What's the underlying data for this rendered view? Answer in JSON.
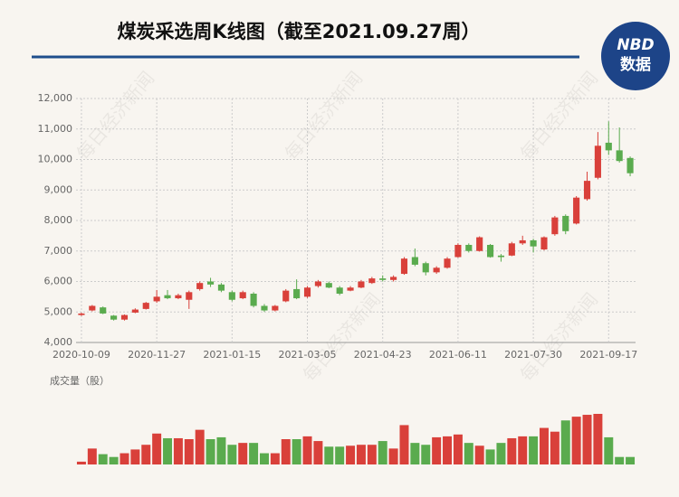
{
  "chart_data": {
    "type": "candlestick",
    "title": "煤炭采选周K线图（截至2021.09.27周）",
    "logo_top": "NBD",
    "logo_bottom": "数据",
    "watermark": "每日经济新闻",
    "volume_label": "成交量（股）",
    "categories": [
      "2020-10-09",
      null,
      null,
      null,
      null,
      null,
      null,
      "2020-11-27",
      null,
      null,
      null,
      null,
      null,
      null,
      "2021-01-15",
      null,
      null,
      null,
      null,
      null,
      null,
      "2021-03-05",
      null,
      null,
      null,
      null,
      null,
      null,
      "2021-04-23",
      null,
      null,
      null,
      null,
      null,
      null,
      "2021-06-11",
      null,
      null,
      null,
      null,
      null,
      null,
      "2021-07-30",
      null,
      null,
      null,
      null,
      null,
      null,
      "2021-09-17",
      null,
      null
    ],
    "open": [
      4900,
      5050,
      5150,
      4880,
      4750,
      4980,
      5100,
      5350,
      5550,
      5450,
      5400,
      5750,
      6000,
      5900,
      5650,
      5450,
      5600,
      5200,
      5050,
      5350,
      5750,
      5500,
      5850,
      5950,
      5800,
      5700,
      5800,
      5950,
      6100,
      6050,
      6250,
      6800,
      6600,
      6300,
      6450,
      6800,
      7200,
      7000,
      7200,
      6850,
      6850,
      7250,
      7350,
      7050,
      7550,
      8150,
      7900,
      8700,
      9400,
      10550,
      10300,
      10050
    ],
    "high": [
      4980,
      5230,
      5180,
      4900,
      4920,
      5120,
      5330,
      5720,
      5720,
      5600,
      5700,
      6000,
      6120,
      5950,
      5700,
      5700,
      5650,
      5260,
      5230,
      5750,
      6070,
      5850,
      6050,
      6000,
      5850,
      5850,
      6050,
      6150,
      6200,
      6200,
      6800,
      7080,
      6650,
      6500,
      6800,
      7250,
      7250,
      7480,
      7230,
      6900,
      7300,
      7500,
      7400,
      7480,
      8150,
      8200,
      8800,
      9600,
      10900,
      11250,
      11050,
      10100
    ],
    "low": [
      4870,
      5020,
      4930,
      4720,
      4720,
      4960,
      5080,
      5300,
      5420,
      5420,
      5100,
      5700,
      5820,
      5650,
      5350,
      5420,
      5150,
      5000,
      5020,
      5320,
      5420,
      5460,
      5800,
      5780,
      5550,
      5680,
      5780,
      5920,
      6000,
      6000,
      6220,
      6500,
      6200,
      6250,
      6420,
      6780,
      6950,
      6980,
      6780,
      6650,
      6830,
      7200,
      6950,
      7020,
      7500,
      7550,
      7870,
      8650,
      9350,
      10150,
      9900,
      9450
    ],
    "close": [
      4950,
      5200,
      4950,
      4750,
      4900,
      5080,
      5300,
      5500,
      5450,
      5550,
      5650,
      5950,
      5900,
      5700,
      5400,
      5650,
      5200,
      5050,
      5200,
      5700,
      5450,
      5800,
      6000,
      5800,
      5600,
      5800,
      6000,
      6100,
      6050,
      6150,
      6750,
      6550,
      6300,
      6450,
      6750,
      7200,
      7000,
      7450,
      6800,
      6800,
      7250,
      7350,
      7150,
      7450,
      8100,
      7650,
      8750,
      9300,
      10450,
      10300,
      9950,
      9550
    ],
    "volume": [
      3,
      17,
      11,
      8,
      12,
      16,
      21,
      33,
      28,
      28,
      27,
      37,
      27,
      29,
      21,
      23,
      23,
      12,
      12,
      27,
      27,
      30,
      25,
      19,
      19,
      20,
      21,
      21,
      25,
      17,
      42,
      23,
      21,
      29,
      30,
      32,
      23,
      20,
      16,
      23,
      28,
      30,
      30,
      39,
      35,
      47,
      51,
      53,
      54,
      29,
      8,
      8
    ],
    "colors": {
      "up": "#d9403a",
      "down": "#5aab4e"
    },
    "ylim": [
      4000,
      12000
    ],
    "yticks": [
      {
        "value": 4000,
        "label": "4,000"
      },
      {
        "value": 5000,
        "label": "5,000"
      },
      {
        "value": 6000,
        "label": "6,000"
      },
      {
        "value": 7000,
        "label": "7,000"
      },
      {
        "value": 8000,
        "label": "8,000"
      },
      {
        "value": 9000,
        "label": "9,000"
      },
      {
        "value": 10000,
        "label": "10,000"
      },
      {
        "value": 11000,
        "label": "11,000"
      },
      {
        "value": 12000,
        "label": "12,000"
      }
    ],
    "grid": true
  }
}
